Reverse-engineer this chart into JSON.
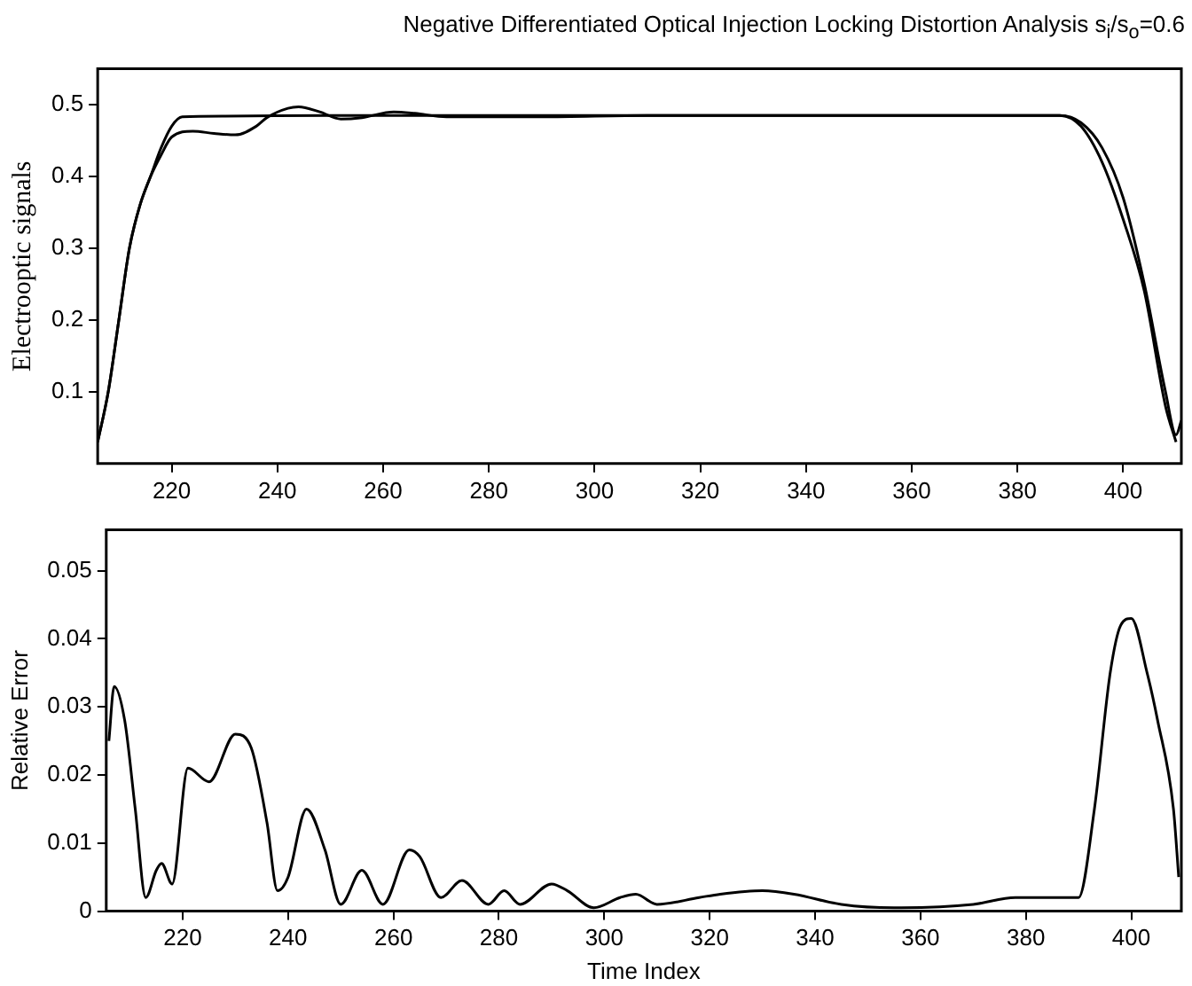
{
  "chart_data": [
    {
      "type": "line",
      "title": "Negative Differentiated Optical Injection Locking Distortion Analysis s$_{i}$/s$_{o}$=0.6",
      "ylabel": "Electrooptic signals",
      "xlim": [
        206,
        411
      ],
      "xticks": [
        220,
        240,
        260,
        280,
        300,
        320,
        340,
        360,
        380,
        400
      ],
      "ylim": [
        0,
        0.55
      ],
      "yticks": [
        0.1,
        0.2,
        0.3,
        0.4,
        0.5
      ],
      "grid": false,
      "legend": false,
      "series": [
        {
          "color": "#000000",
          "x": [
            206,
            208,
            210,
            212,
            214,
            216,
            218,
            220,
            222,
            230,
            250,
            300,
            350,
            388,
            392,
            396,
            400,
            404,
            408,
            410,
            411
          ],
          "values": [
            0.03,
            0.1,
            0.2,
            0.3,
            0.36,
            0.4,
            0.44,
            0.47,
            0.483,
            0.484,
            0.485,
            0.485,
            0.485,
            0.485,
            0.475,
            0.44,
            0.37,
            0.25,
            0.1,
            0.04,
            0.06
          ]
        },
        {
          "color": "#000000",
          "x": [
            206,
            208,
            210,
            212,
            214,
            216,
            218,
            220,
            224,
            228,
            232,
            236,
            238,
            242,
            244,
            248,
            252,
            256,
            262,
            266,
            272,
            290,
            310,
            350,
            388,
            392,
            396,
            400,
            404,
            408,
            410
          ],
          "values": [
            0.03,
            0.1,
            0.2,
            0.3,
            0.36,
            0.4,
            0.43,
            0.455,
            0.463,
            0.46,
            0.458,
            0.47,
            0.482,
            0.495,
            0.497,
            0.49,
            0.48,
            0.482,
            0.49,
            0.488,
            0.483,
            0.483,
            0.485,
            0.485,
            0.485,
            0.47,
            0.42,
            0.34,
            0.24,
            0.08,
            0.03
          ]
        }
      ]
    },
    {
      "type": "line",
      "xlabel": "Time Index",
      "ylabel": "Relative Error",
      "xlim": [
        205.5,
        409.5
      ],
      "xticks": [
        220,
        240,
        260,
        280,
        300,
        320,
        340,
        360,
        380,
        400
      ],
      "ylim": [
        0,
        0.056
      ],
      "yticks": [
        0,
        0.01,
        0.02,
        0.03,
        0.04,
        0.05
      ],
      "grid": false,
      "legend": false,
      "series": [
        {
          "color": "#000000",
          "x": [
            206,
            207,
            209,
            211,
            213,
            215,
            216,
            218,
            221,
            225,
            230,
            233,
            236,
            238,
            240,
            243.5,
            247,
            250,
            254,
            258,
            263,
            265,
            269,
            273,
            278,
            281,
            284,
            290,
            293,
            298,
            303,
            306,
            310,
            318,
            322,
            330,
            336,
            345,
            355,
            370,
            378,
            388,
            390,
            393,
            396,
            398,
            400,
            403,
            405,
            408,
            409
          ],
          "values": [
            0.025,
            0.033,
            0.028,
            0.015,
            0.002,
            0.006,
            0.007,
            0.004,
            0.021,
            0.019,
            0.026,
            0.024,
            0.013,
            0.003,
            0.005,
            0.015,
            0.009,
            0.001,
            0.006,
            0.001,
            0.009,
            0.008,
            0.002,
            0.0045,
            0.001,
            0.003,
            0.001,
            0.004,
            0.003,
            0.0005,
            0.002,
            0.0025,
            0.001,
            0.002,
            0.0025,
            0.003,
            0.0025,
            0.001,
            0.0005,
            0.001,
            0.002,
            0.002,
            0.002,
            0.015,
            0.035,
            0.042,
            0.043,
            0.035,
            0.028,
            0.015,
            0.005
          ]
        }
      ]
    }
  ]
}
